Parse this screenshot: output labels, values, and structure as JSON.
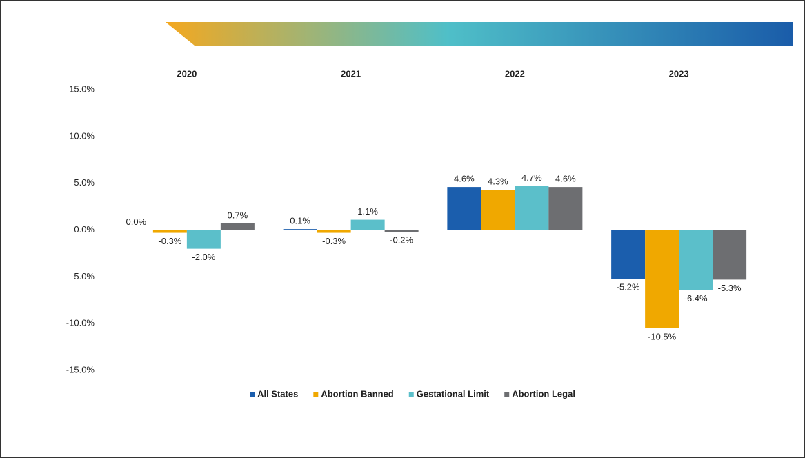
{
  "chart_data": {
    "type": "bar",
    "categories": [
      "2020",
      "2021",
      "2022",
      "2023"
    ],
    "series": [
      {
        "name": "All States",
        "color": "#1b5ead",
        "values": [
          0.0,
          0.1,
          4.6,
          -5.2
        ],
        "value_labels": [
          "0.0%",
          "0.1%",
          "4.6%",
          "-5.2%"
        ]
      },
      {
        "name": "Abortion Banned",
        "color": "#f0a800",
        "values": [
          -0.3,
          -0.3,
          4.3,
          -10.5
        ],
        "value_labels": [
          "-0.3%",
          "-0.3%",
          "4.3%",
          "-10.5%"
        ]
      },
      {
        "name": "Gestational Limit",
        "color": "#5bbfca",
        "values": [
          -2.0,
          1.1,
          4.7,
          -6.4
        ],
        "value_labels": [
          "-2.0%",
          "1.1%",
          "4.7%",
          "-6.4%"
        ]
      },
      {
        "name": "Abortion Legal",
        "color": "#6d6e71",
        "values": [
          0.7,
          -0.2,
          4.6,
          -5.3
        ],
        "value_labels": [
          "0.7%",
          "-0.2%",
          "4.6%",
          "-5.3%"
        ]
      }
    ],
    "ylim": [
      -15,
      15
    ],
    "yticks": [
      {
        "value": 15,
        "label": "15.0%"
      },
      {
        "value": 10,
        "label": "10.0%"
      },
      {
        "value": 5,
        "label": "5.0%"
      },
      {
        "value": 0,
        "label": "0.0%"
      },
      {
        "value": -5,
        "label": "-5.0%"
      },
      {
        "value": -10,
        "label": "-10.0%"
      },
      {
        "value": -15,
        "label": "-15.0%"
      }
    ],
    "grid": false,
    "legend": "bottom"
  }
}
